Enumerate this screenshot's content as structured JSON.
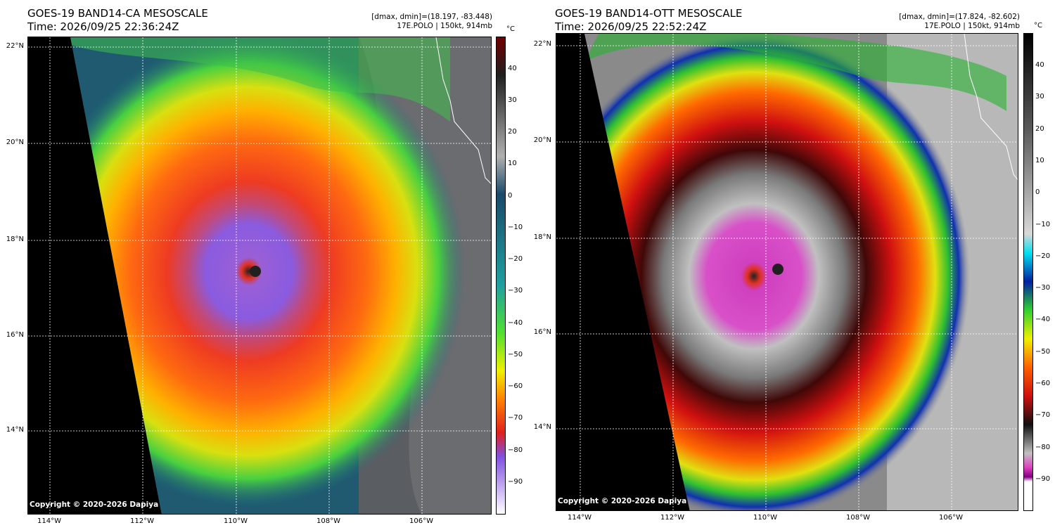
{
  "left": {
    "title": "GOES-19 BAND14-CA MESOSCALE",
    "time": "Time: 2026/09/25 22:36:24Z",
    "meta_line1": "[dmax, dmin]=(18.197, -83.448)",
    "meta_line2": "17E.POLO | 150kt, 914mb",
    "unit": "°C",
    "colorbar_ticks": [
      "40",
      "30",
      "20",
      "10",
      "0",
      "−10",
      "−20",
      "−30",
      "−40",
      "−50",
      "−60",
      "−70",
      "−80",
      "−90"
    ],
    "copyright": "Copyright © 2020-2026 Dapiya"
  },
  "right": {
    "title": "GOES-19 BAND14-OTT MESOSCALE",
    "time": "Time: 2026/09/25 22:52:24Z",
    "meta_line1": "[dmax, dmin]=(17.824, -82.602)",
    "meta_line2": "17E.POLO | 150kt, 914mb",
    "unit": "°C",
    "colorbar_ticks": [
      "40",
      "30",
      "20",
      "10",
      "0",
      "−10",
      "−20",
      "−30",
      "−40",
      "−50",
      "−60",
      "−70",
      "−80",
      "−90"
    ],
    "copyright": "Copyright © 2020-2026 Dapiya"
  },
  "lat_labels": [
    "22°N",
    "20°N",
    "18°N",
    "16°N",
    "14°N"
  ],
  "lon_labels": [
    "114°W",
    "112°W",
    "110°W",
    "108°W",
    "106°W"
  ]
}
